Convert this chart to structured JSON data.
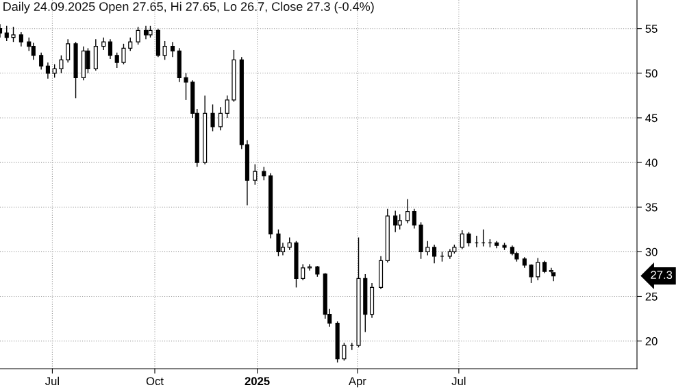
{
  "chart_data": {
    "type": "candlestick",
    "title": "Daily 24.09.2025 Open 27.65, Hi 27.65, Lo 26.7, Close 27.3 (-0.4%)",
    "x": [
      "2024-05-15",
      "2024-05-21",
      "2024-05-27",
      "2024-06-03",
      "2024-06-10",
      "2024-06-14",
      "2024-06-21",
      "2024-06-27",
      "2024-07-03",
      "2024-07-09",
      "2024-07-15",
      "2024-07-22",
      "2024-07-29",
      "2024-08-02",
      "2024-08-09",
      "2024-08-16",
      "2024-08-22",
      "2024-08-28",
      "2024-09-03",
      "2024-09-09",
      "2024-09-16",
      "2024-09-23",
      "2024-09-27",
      "2024-10-04",
      "2024-10-10",
      "2024-10-17",
      "2024-10-23",
      "2024-10-29",
      "2024-11-04",
      "2024-11-08",
      "2024-11-15",
      "2024-11-22",
      "2024-11-29",
      "2024-12-05",
      "2024-12-11",
      "2024-12-18",
      "2024-12-23",
      "2024-12-30",
      "2025-01-07",
      "2025-01-13",
      "2025-01-20",
      "2025-01-24",
      "2025-01-30",
      "2025-02-05",
      "2025-02-11",
      "2025-02-17",
      "2025-02-24",
      "2025-03-03",
      "2025-03-07",
      "2025-03-14",
      "2025-03-20",
      "2025-03-27",
      "2025-04-02",
      "2025-04-08",
      "2025-04-14",
      "2025-04-22",
      "2025-04-28",
      "2025-05-05",
      "2025-05-09",
      "2025-05-16",
      "2025-05-22",
      "2025-05-28",
      "2025-06-03",
      "2025-06-09",
      "2025-06-16",
      "2025-06-23",
      "2025-06-27",
      "2025-07-04",
      "2025-07-10",
      "2025-07-17",
      "2025-07-23",
      "2025-07-29",
      "2025-08-04",
      "2025-08-11",
      "2025-08-18",
      "2025-08-22",
      "2025-08-29",
      "2025-09-04",
      "2025-09-10",
      "2025-09-16",
      "2025-09-22",
      "2025-09-24"
    ],
    "ohlc": [
      [
        55.0,
        55.5,
        54.0,
        54.5
      ],
      [
        54.5,
        55.3,
        53.6,
        54.0
      ],
      [
        54.0,
        55.2,
        53.5,
        54.3
      ],
      [
        54.3,
        54.6,
        53.0,
        53.5
      ],
      [
        53.5,
        54.0,
        52.5,
        53.0
      ],
      [
        53.0,
        53.4,
        51.5,
        52.0
      ],
      [
        52.0,
        52.3,
        50.4,
        50.8
      ],
      [
        50.8,
        51.2,
        49.4,
        50.0
      ],
      [
        50.0,
        51.0,
        49.5,
        50.5
      ],
      [
        50.5,
        52.0,
        50.0,
        51.5
      ],
      [
        51.5,
        53.8,
        51.2,
        53.3
      ],
      [
        53.3,
        53.5,
        47.2,
        49.5
      ],
      [
        49.5,
        53.0,
        49.2,
        52.5
      ],
      [
        52.5,
        52.8,
        50.0,
        50.5
      ],
      [
        50.5,
        53.8,
        50.3,
        53.0
      ],
      [
        53.0,
        54.0,
        52.6,
        53.5
      ],
      [
        53.5,
        53.8,
        51.6,
        52.0
      ],
      [
        52.0,
        52.3,
        50.6,
        51.2
      ],
      [
        51.2,
        53.3,
        51.0,
        52.8
      ],
      [
        52.8,
        54.0,
        52.5,
        53.5
      ],
      [
        53.5,
        55.2,
        53.2,
        54.8
      ],
      [
        54.8,
        55.3,
        53.8,
        54.3
      ],
      [
        54.3,
        55.3,
        54.0,
        54.8
      ],
      [
        54.8,
        55.0,
        51.8,
        52.0
      ],
      [
        52.0,
        53.6,
        51.5,
        53.0
      ],
      [
        53.0,
        53.5,
        51.8,
        52.5
      ],
      [
        52.5,
        52.8,
        49.0,
        49.5
      ],
      [
        49.5,
        50.0,
        47.0,
        49.0
      ],
      [
        49.0,
        49.2,
        45.0,
        45.5
      ],
      [
        45.5,
        46.0,
        39.5,
        40.0
      ],
      [
        40.0,
        47.5,
        39.8,
        45.5
      ],
      [
        45.5,
        46.5,
        43.5,
        44.0
      ],
      [
        44.0,
        46.2,
        43.6,
        45.5
      ],
      [
        45.5,
        47.5,
        45.0,
        47.0
      ],
      [
        47.0,
        52.6,
        46.8,
        51.5
      ],
      [
        51.5,
        51.8,
        41.5,
        42.0
      ],
      [
        42.0,
        42.5,
        35.2,
        38.0
      ],
      [
        38.0,
        39.8,
        37.5,
        39.0
      ],
      [
        39.0,
        39.5,
        38.0,
        38.5
      ],
      [
        38.5,
        38.8,
        31.5,
        32.0
      ],
      [
        32.0,
        32.5,
        29.5,
        30.0
      ],
      [
        30.0,
        31.0,
        29.6,
        30.5
      ],
      [
        30.5,
        31.6,
        30.2,
        31.0
      ],
      [
        31.0,
        31.2,
        26.0,
        27.0
      ],
      [
        27.0,
        28.6,
        26.8,
        28.2
      ],
      [
        28.2,
        28.6,
        27.9,
        28.3
      ],
      [
        28.3,
        28.4,
        27.2,
        27.5
      ],
      [
        27.5,
        27.6,
        22.5,
        23.0
      ],
      [
        23.0,
        23.6,
        21.6,
        22.0
      ],
      [
        22.0,
        22.2,
        17.6,
        18.0
      ],
      [
        18.0,
        19.8,
        17.8,
        19.5
      ],
      [
        19.5,
        19.8,
        19.0,
        19.5
      ],
      [
        19.5,
        31.6,
        19.3,
        27.0
      ],
      [
        27.0,
        27.5,
        21.0,
        23.0
      ],
      [
        23.0,
        26.5,
        22.6,
        26.0
      ],
      [
        26.0,
        29.5,
        25.8,
        29.0
      ],
      [
        29.0,
        34.8,
        28.8,
        34.0
      ],
      [
        34.0,
        34.6,
        32.2,
        33.0
      ],
      [
        33.0,
        34.2,
        32.5,
        33.5
      ],
      [
        33.5,
        35.9,
        33.2,
        34.5
      ],
      [
        34.5,
        34.8,
        32.6,
        33.0
      ],
      [
        33.0,
        33.3,
        29.2,
        30.0
      ],
      [
        30.0,
        31.2,
        29.6,
        30.5
      ],
      [
        30.5,
        30.8,
        28.7,
        29.5
      ],
      [
        29.5,
        30.0,
        28.9,
        29.5
      ],
      [
        29.5,
        30.3,
        29.2,
        30.0
      ],
      [
        30.0,
        30.8,
        29.8,
        30.5
      ],
      [
        30.5,
        32.4,
        30.3,
        32.0
      ],
      [
        32.0,
        32.2,
        30.6,
        31.0
      ],
      [
        31.0,
        31.8,
        30.5,
        31.0
      ],
      [
        31.0,
        32.5,
        30.6,
        31.0
      ],
      [
        31.0,
        31.4,
        30.5,
        31.0
      ],
      [
        31.0,
        31.2,
        30.4,
        30.7
      ],
      [
        30.7,
        31.0,
        30.2,
        30.5
      ],
      [
        30.5,
        30.7,
        29.6,
        29.8
      ],
      [
        29.8,
        30.0,
        28.9,
        29.2
      ],
      [
        29.2,
        29.4,
        28.2,
        28.5
      ],
      [
        28.5,
        28.6,
        26.5,
        27.2
      ],
      [
        27.2,
        29.3,
        26.8,
        28.8
      ],
      [
        28.8,
        29.0,
        27.6,
        27.8
      ],
      [
        27.8,
        28.2,
        27.6,
        27.9
      ],
      [
        27.65,
        27.65,
        26.7,
        27.3
      ]
    ],
    "xlim": [
      "2024-05-15",
      "2025-12-08"
    ],
    "xticks": [
      {
        "value": "2024-07-01",
        "label": "Jul"
      },
      {
        "value": "2024-10-01",
        "label": "Oct"
      },
      {
        "value": "2025-01-01",
        "label": "2025"
      },
      {
        "value": "2025-04-01",
        "label": "Apr"
      },
      {
        "value": "2025-07-01",
        "label": "Jul"
      }
    ],
    "ylim": [
      16.9,
      58.2
    ],
    "yticks": [
      20,
      25,
      30,
      35,
      40,
      45,
      50,
      55
    ],
    "grid": true,
    "annotations": [
      "27.3"
    ]
  }
}
